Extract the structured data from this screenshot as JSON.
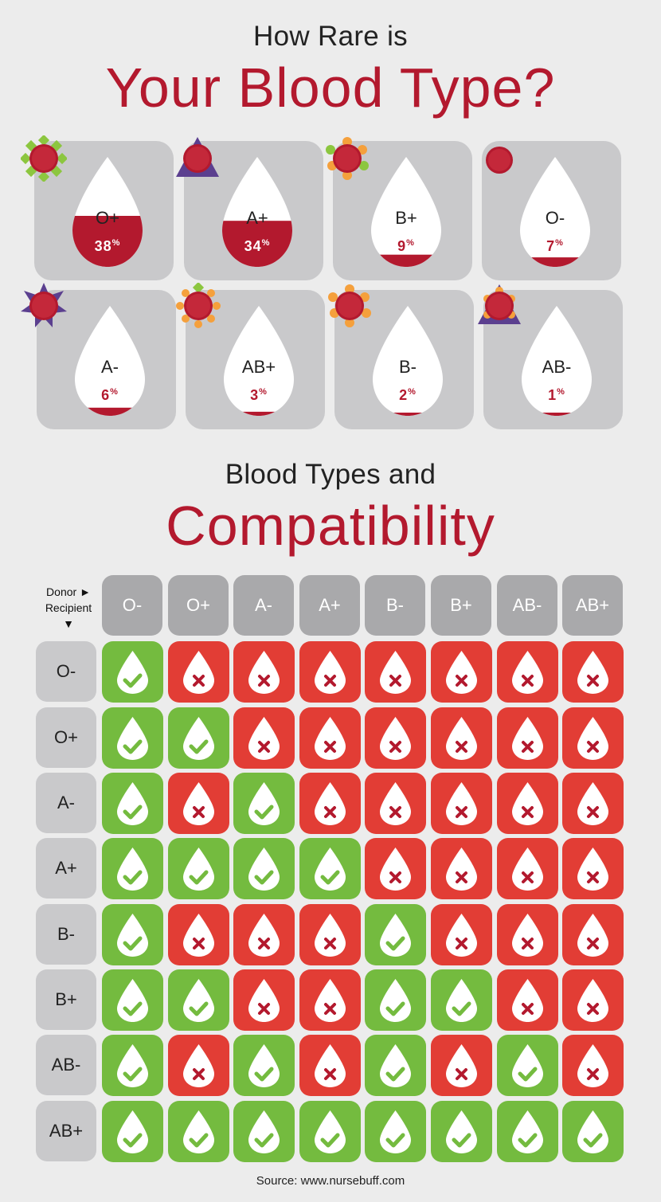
{
  "rarity": {
    "title_small": "How Rare is",
    "title_big": "Your Blood Type?",
    "types": [
      {
        "type": "O+",
        "percent": "38",
        "fill": 0.38
      },
      {
        "type": "A+",
        "percent": "34",
        "fill": 0.34
      },
      {
        "type": "B+",
        "percent": "9",
        "fill": 0.09
      },
      {
        "type": "O-",
        "percent": "7",
        "fill": 0.07
      },
      {
        "type": "A-",
        "percent": "6",
        "fill": 0.06
      },
      {
        "type": "AB+",
        "percent": "3",
        "fill": 0.03
      },
      {
        "type": "B-",
        "percent": "2",
        "fill": 0.02
      },
      {
        "type": "AB-",
        "percent": "1",
        "fill": 0.01
      }
    ],
    "percent_sign": "%"
  },
  "compat": {
    "title_small": "Blood Types and",
    "title_big": "Compatibility",
    "donor_label": "Donor ►",
    "recipient_label": "Recipient",
    "recipient_arrow": "▼",
    "donors": [
      "O-",
      "O+",
      "A-",
      "A+",
      "B-",
      "B+",
      "AB-",
      "AB+"
    ],
    "recipients": [
      "O-",
      "O+",
      "A-",
      "A+",
      "B-",
      "B+",
      "AB-",
      "AB+"
    ],
    "matrix": [
      [
        1,
        0,
        0,
        0,
        0,
        0,
        0,
        0
      ],
      [
        1,
        1,
        0,
        0,
        0,
        0,
        0,
        0
      ],
      [
        1,
        0,
        1,
        0,
        0,
        0,
        0,
        0
      ],
      [
        1,
        1,
        1,
        1,
        0,
        0,
        0,
        0
      ],
      [
        1,
        0,
        0,
        0,
        1,
        0,
        0,
        0
      ],
      [
        1,
        1,
        0,
        0,
        1,
        1,
        0,
        0
      ],
      [
        1,
        0,
        1,
        0,
        1,
        0,
        1,
        0
      ],
      [
        1,
        1,
        1,
        1,
        1,
        1,
        1,
        1
      ]
    ]
  },
  "colors": {
    "red": "#b3192e",
    "green": "#74bb3f",
    "no_red": "#e23d35",
    "card_gray": "#c9c9cb",
    "header_gray": "#a9a9ab"
  },
  "source": "Source: www.nursebuff.com"
}
